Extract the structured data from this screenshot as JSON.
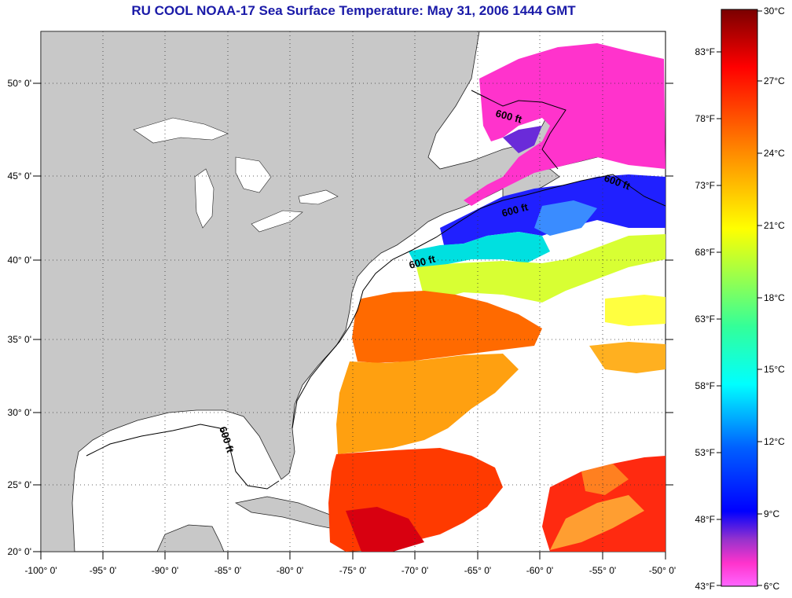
{
  "title": "RU COOL  NOAA-17  Sea Surface Temperature:  May 31, 2006 1444 GMT",
  "map": {
    "lon_range": [
      -100,
      -50
    ],
    "lat_range": [
      20,
      52.5
    ],
    "lon_ticks": [
      "-100° 0'",
      "-95° 0'",
      "-90° 0'",
      "-85° 0'",
      "-80° 0'",
      "-75° 0'",
      "-70° 0'",
      "-65° 0'",
      "-60° 0'",
      "-55° 0'",
      "-50° 0'"
    ],
    "lat_ticks": [
      "20° 0'",
      "25° 0'",
      "30° 0'",
      "35° 0'",
      "40° 0'",
      "45° 0'",
      "50° 0'"
    ],
    "land_color": "#c8c8c8",
    "nodata_color": "#ffffff",
    "grid": "dotted",
    "contour_labels": [
      "600 ft",
      "600 ft",
      "600 ft",
      "600 ft",
      "600 ft"
    ]
  },
  "colorbar": {
    "celsius_labels": [
      "30°C",
      "27°C",
      "24°C",
      "21°C",
      "18°C",
      "15°C",
      "12°C",
      "9°C",
      "6°C"
    ],
    "fahrenheit_labels": [
      "83°F",
      "78°F",
      "73°F",
      "68°F",
      "63°F",
      "58°F",
      "53°F",
      "48°F",
      "43°F"
    ],
    "colors": [
      "#7a0000",
      "#ff0000",
      "#ff8c00",
      "#ffff00",
      "#6cff6c",
      "#00ffff",
      "#0060ff",
      "#0000ff",
      "#ff33cc",
      "#ff66ff"
    ]
  }
}
